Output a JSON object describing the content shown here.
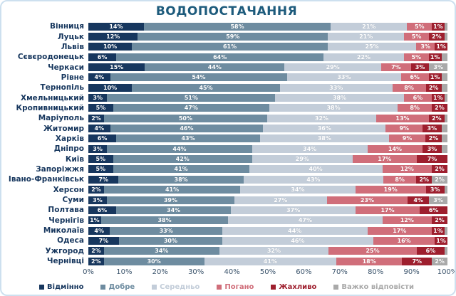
{
  "title": "ВОДОПОСТАЧАННЯ",
  "colors": {
    "border": "#cde0ef",
    "title_text": "#1d5b7c",
    "city_label_text": "#17375E",
    "axis_text": "#3a536b",
    "segment_label_text": "#ffffff"
  },
  "chart_data": {
    "type": "bar",
    "stacked": true,
    "orientation": "horizontal",
    "title": "ВОДОПОСТАЧАННЯ",
    "xlabel": "",
    "ylabel": "",
    "xlim": [
      0,
      100
    ],
    "grid": false,
    "legend_position": "bottom",
    "x_ticks": [
      "0%",
      "10%",
      "20%",
      "30%",
      "40%",
      "50%",
      "60%",
      "70%",
      "80%",
      "90%",
      "100%"
    ],
    "series_names": [
      "Відмінно",
      "Добре",
      "Середньо",
      "Погано",
      "Жахливо",
      "Важко відповісти"
    ],
    "series_keys": [
      "excellent",
      "good",
      "average",
      "bad",
      "terrible",
      "hard-to-answer"
    ],
    "series_colors": [
      "#17375E",
      "#6E8CA0",
      "#C3CDD9",
      "#D06E7A",
      "#9E1F2E",
      "#A9A9A9"
    ],
    "rows": [
      {
        "city": "Вінниця",
        "values": [
          14,
          58,
          21,
          5,
          1,
          1
        ],
        "labels": [
          "14%",
          "58%",
          "21%",
          "5%",
          "1%",
          ""
        ]
      },
      {
        "city": "Луцьк",
        "values": [
          12,
          59,
          21,
          5,
          2,
          1
        ],
        "labels": [
          "12%",
          "59%",
          "21%",
          "5%",
          "2%",
          ""
        ]
      },
      {
        "city": "Львів",
        "values": [
          10,
          61,
          25,
          3,
          1,
          0
        ],
        "labels": [
          "10%",
          "61%",
          "25%",
          "3%",
          "1%",
          ""
        ]
      },
      {
        "city": "Сєвєродонецьк",
        "values": [
          6,
          64,
          22,
          5,
          1,
          2
        ],
        "labels": [
          "6%",
          "64%",
          "22%",
          "5%",
          "1%",
          ""
        ]
      },
      {
        "city": "Черкаси",
        "values": [
          15,
          44,
          29,
          7,
          3,
          3
        ],
        "labels": [
          "15%",
          "44%",
          "29%",
          "7%",
          "3%",
          "3%"
        ]
      },
      {
        "city": "Рівне",
        "values": [
          4,
          54,
          33,
          6,
          1,
          2
        ],
        "labels": [
          "4%",
          "54%",
          "33%",
          "6%",
          "1%",
          ""
        ]
      },
      {
        "city": "Тернопіль",
        "values": [
          10,
          45,
          33,
          8,
          2,
          2
        ],
        "labels": [
          "10%",
          "45%",
          "33%",
          "8%",
          "2%",
          ""
        ]
      },
      {
        "city": "Хмельницький",
        "values": [
          3,
          51,
          38,
          6,
          1,
          1
        ],
        "labels": [
          "3%",
          "51%",
          "38%",
          "6%",
          "1%",
          ""
        ]
      },
      {
        "city": "Кропивницький",
        "values": [
          5,
          47,
          38,
          8,
          2,
          0
        ],
        "labels": [
          "5%",
          "47%",
          "38%",
          "8%",
          "2%",
          ""
        ]
      },
      {
        "city": "Маріуполь",
        "values": [
          2,
          50,
          32,
          13,
          2,
          1
        ],
        "labels": [
          "2%",
          "50%",
          "32%",
          "13%",
          "2%",
          ""
        ]
      },
      {
        "city": "Житомир",
        "values": [
          4,
          46,
          36,
          9,
          3,
          2
        ],
        "labels": [
          "4%",
          "46%",
          "36%",
          "9%",
          "3%",
          ""
        ]
      },
      {
        "city": "Харків",
        "values": [
          6,
          43,
          38,
          9,
          2,
          2
        ],
        "labels": [
          "6%",
          "43%",
          "38%",
          "9%",
          "2%",
          ""
        ]
      },
      {
        "city": "Дніпро",
        "values": [
          3,
          44,
          34,
          14,
          3,
          2
        ],
        "labels": [
          "3%",
          "44%",
          "34%",
          "14%",
          "3%",
          ""
        ]
      },
      {
        "city": "Київ",
        "values": [
          5,
          42,
          29,
          17,
          7,
          0
        ],
        "labels": [
          "5%",
          "42%",
          "29%",
          "17%",
          "7%",
          ""
        ]
      },
      {
        "city": "Запоріжжя",
        "values": [
          5,
          41,
          40,
          12,
          2,
          0
        ],
        "labels": [
          "5%",
          "41%",
          "40%",
          "12%",
          "2%",
          ""
        ]
      },
      {
        "city": "Івано-Франківськ",
        "values": [
          7,
          38,
          43,
          8,
          2,
          2
        ],
        "labels": [
          "7%",
          "38%",
          "43%",
          "8%",
          "2%",
          "2%"
        ]
      },
      {
        "city": "Херсон",
        "values": [
          2,
          41,
          34,
          19,
          3,
          1
        ],
        "labels": [
          "2%",
          "41%",
          "34%",
          "19%",
          "3%",
          ""
        ]
      },
      {
        "city": "Суми",
        "values": [
          3,
          39,
          27,
          23,
          4,
          3
        ],
        "labels": [
          "3%",
          "39%",
          "27%",
          "23%",
          "4%",
          "3%"
        ]
      },
      {
        "city": "Полтава",
        "values": [
          6,
          34,
          37,
          17,
          6,
          0
        ],
        "labels": [
          "6%",
          "34%",
          "37%",
          "17%",
          "6%",
          ""
        ]
      },
      {
        "city": "Чернігів",
        "values": [
          1,
          38,
          47,
          12,
          2,
          0
        ],
        "labels": [
          "1%",
          "38%",
          "47%",
          "12%",
          "2%",
          ""
        ]
      },
      {
        "city": "Миколаїв",
        "values": [
          4,
          33,
          44,
          17,
          1,
          1
        ],
        "labels": [
          "4%",
          "33%",
          "44%",
          "17%",
          "1%",
          ""
        ]
      },
      {
        "city": "Одеса",
        "values": [
          7,
          30,
          46,
          16,
          1,
          0
        ],
        "labels": [
          "7%",
          "30%",
          "46%",
          "16%",
          "1%",
          ""
        ]
      },
      {
        "city": "Ужгород",
        "values": [
          2,
          34,
          32,
          25,
          6,
          1
        ],
        "labels": [
          "2%",
          "34%",
          "32%",
          "25%",
          "6%",
          ""
        ]
      },
      {
        "city": "Чернівці",
        "values": [
          2,
          30,
          41,
          18,
          7,
          2
        ],
        "labels": [
          "2%",
          "30%",
          "41%",
          "18%",
          "7%",
          "2%"
        ]
      }
    ]
  }
}
